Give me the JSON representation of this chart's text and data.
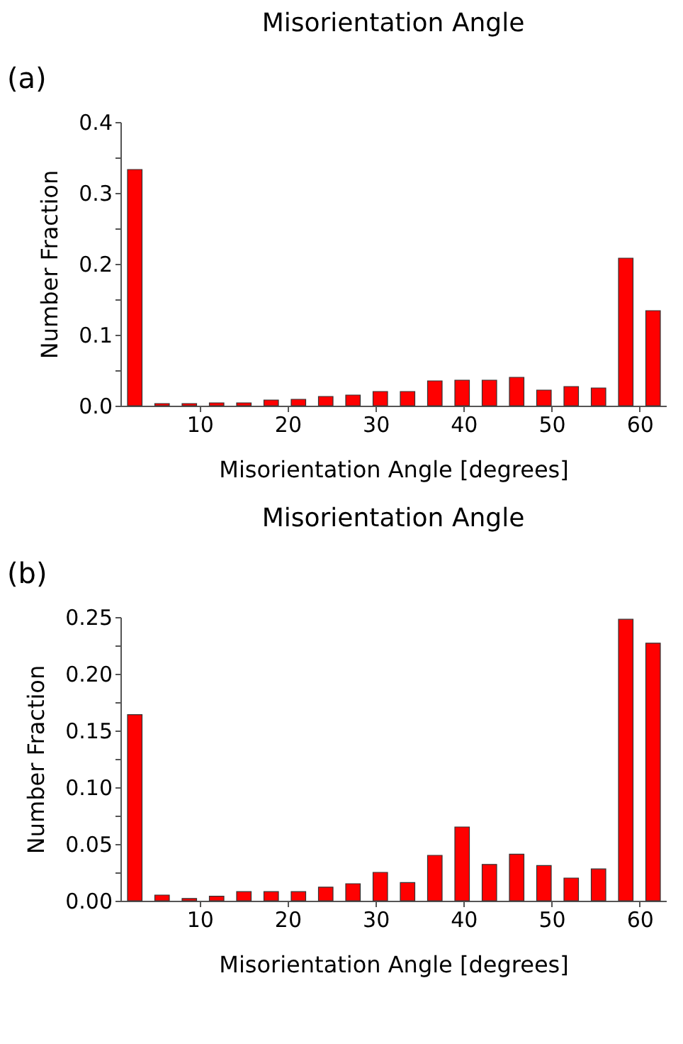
{
  "chart_data": [
    {
      "type": "histogram",
      "title": "Misorientation Angle",
      "xlabel": "Misorientation Angle [degrees]",
      "ylabel": "Number Fraction",
      "annotations": [
        "(a)"
      ],
      "color": "#ff0000",
      "bins": [
        1,
        4.1,
        7.2,
        10.3,
        13.4,
        16.5,
        19.6,
        22.7,
        25.8,
        28.9,
        32,
        35.1,
        38.2,
        41.3,
        44.4,
        47.5,
        50.6,
        53.7,
        56.8,
        59.9,
        63
      ],
      "values": [
        0.333,
        0.003,
        0.003,
        0.004,
        0.004,
        0.008,
        0.009,
        0.013,
        0.015,
        0.02,
        0.02,
        0.035,
        0.036,
        0.036,
        0.04,
        0.022,
        0.027,
        0.025,
        0.208,
        0.134
      ],
      "xlim": [
        1,
        63
      ],
      "xticks": [
        10,
        20,
        30,
        40,
        50,
        60
      ],
      "ylim": [
        0,
        0.4
      ],
      "yticks": [
        {
          "value": 0,
          "label": "0.0"
        },
        {
          "value": 0.05,
          "label": null
        },
        {
          "value": 0.1,
          "label": "0.1"
        },
        {
          "value": 0.15,
          "label": null
        },
        {
          "value": 0.2,
          "label": "0.2"
        },
        {
          "value": 0.25,
          "label": null
        },
        {
          "value": 0.3,
          "label": "0.3"
        },
        {
          "value": 0.35,
          "label": null
        },
        {
          "value": 0.4,
          "label": "0.4"
        }
      ]
    },
    {
      "type": "histogram",
      "title": "Misorientation Angle",
      "xlabel": "Misorientation Angle [degrees]",
      "ylabel": "Number Fraction",
      "annotations": [
        "(b)"
      ],
      "color": "#ff0000",
      "bins": [
        1,
        4.1,
        7.2,
        10.3,
        13.4,
        16.5,
        19.6,
        22.7,
        25.8,
        28.9,
        32,
        35.1,
        38.2,
        41.3,
        44.4,
        47.5,
        50.6,
        53.7,
        56.8,
        59.9,
        63
      ],
      "values": [
        0.164,
        0.005,
        0.002,
        0.004,
        0.008,
        0.008,
        0.008,
        0.012,
        0.015,
        0.025,
        0.016,
        0.04,
        0.065,
        0.032,
        0.041,
        0.031,
        0.02,
        0.028,
        0.248,
        0.227
      ],
      "xlim": [
        1,
        63
      ],
      "xticks": [
        10,
        20,
        30,
        40,
        50,
        60
      ],
      "ylim": [
        0,
        0.25
      ],
      "yticks": [
        {
          "value": 0,
          "label": "0.00"
        },
        {
          "value": 0.025,
          "label": null
        },
        {
          "value": 0.05,
          "label": "0.05"
        },
        {
          "value": 0.075,
          "label": null
        },
        {
          "value": 0.1,
          "label": "0.10"
        },
        {
          "value": 0.125,
          "label": null
        },
        {
          "value": 0.15,
          "label": "0.15"
        },
        {
          "value": 0.175,
          "label": null
        },
        {
          "value": 0.2,
          "label": "0.20"
        },
        {
          "value": 0.225,
          "label": null
        },
        {
          "value": 0.25,
          "label": "0.25"
        }
      ]
    }
  ]
}
